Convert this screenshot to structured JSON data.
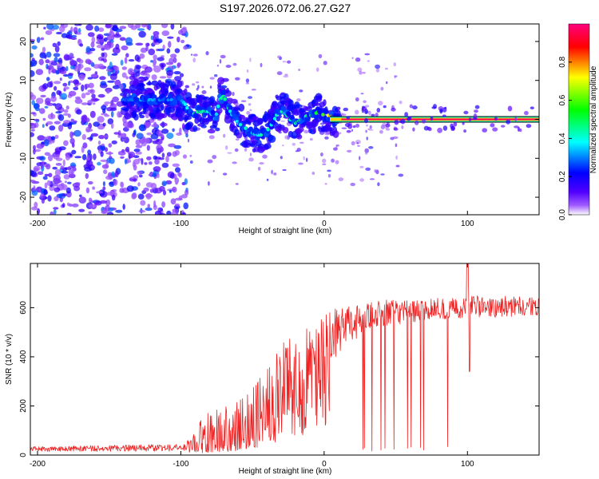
{
  "figure": {
    "title": "S197.2026.072.06.27.G27"
  },
  "chart_data": [
    {
      "id": "spectrogram",
      "type": "heatmap",
      "xlabel": "Height of straight line (km)",
      "ylabel": "Frequency (Hz)",
      "xlim": [
        -205,
        150
      ],
      "ylim": [
        -24.5,
        24.5
      ],
      "xticks": [
        -200,
        -100,
        0,
        100
      ],
      "yticks": [
        -20,
        -10,
        0,
        10,
        20
      ],
      "colorbar": {
        "label": "Normalized spectral amplitude",
        "range": [
          0,
          1
        ],
        "ticks": [
          "0.0",
          "0.2",
          "0.4",
          "0.6",
          "0.8"
        ],
        "stops": [
          "#ffffff",
          "#a05aff",
          "#5000ff",
          "#0000ff",
          "#00ffff",
          "#00ff00",
          "#ffff00",
          "#ff0000",
          "#ff0080"
        ]
      },
      "ridge": {
        "description": "dominant frequency vs height",
        "x": [
          -135,
          -128,
          -120,
          -112,
          -105,
          -100,
          -97,
          -93,
          -88,
          -84,
          -80,
          -76,
          -73,
          -70,
          -67,
          -64,
          -60,
          -56,
          -52,
          -48,
          -44,
          -40,
          -36,
          -32,
          -28,
          -24,
          -20,
          -16,
          -12,
          -8,
          -4,
          0,
          4,
          10,
          20,
          30,
          40,
          50,
          60,
          70,
          80,
          90,
          95,
          100,
          110,
          120,
          130,
          140,
          150
        ],
        "freq": [
          5,
          5,
          5,
          5,
          5,
          5,
          4,
          1,
          2,
          2,
          2,
          0,
          5,
          6,
          3,
          1,
          -1,
          -2,
          -3,
          -4,
          -4,
          -3,
          -1,
          2,
          2,
          0,
          -1,
          0,
          1,
          1,
          2,
          1,
          1,
          0,
          0,
          0,
          0,
          0,
          0,
          0,
          0,
          0,
          1,
          0,
          0,
          0,
          0,
          0,
          0
        ],
        "amp": [
          0.3,
          0.35,
          0.35,
          0.3,
          0.35,
          0.3,
          0.4,
          0.45,
          0.5,
          0.45,
          0.4,
          0.35,
          0.45,
          0.5,
          0.45,
          0.4,
          0.4,
          0.45,
          0.4,
          0.35,
          0.45,
          0.45,
          0.4,
          0.45,
          0.5,
          0.45,
          0.45,
          0.5,
          0.5,
          0.55,
          0.55,
          0.65,
          0.8,
          0.9,
          0.95,
          0.98,
          1.0,
          1.0,
          1.0,
          1.0,
          1.0,
          1.0,
          1.0,
          1.0,
          1.0,
          1.0,
          1.0,
          1.0,
          1.0
        ]
      },
      "noise_region": {
        "description": "scattered low-amplitude noise",
        "x_range": [
          -205,
          -95
        ],
        "amp_range": [
          0.05,
          0.3
        ]
      }
    },
    {
      "id": "snr",
      "type": "line",
      "xlabel": "Height of straight line (km)",
      "ylabel": "SNR (10 * v/v)",
      "xlim": [
        -205,
        150
      ],
      "ylim": [
        0,
        780
      ],
      "xticks": [
        -200,
        -100,
        0,
        100
      ],
      "yticks": [
        0,
        200,
        400,
        600
      ],
      "color": "#ee2222",
      "envelope": {
        "x": [
          -205,
          -100,
          -92,
          -85,
          -70,
          -60,
          -50,
          -40,
          -30,
          -20,
          -15,
          -10,
          -5,
          0,
          5,
          10,
          20,
          30,
          40,
          60,
          80,
          100,
          120,
          150
        ],
        "lower": [
          15,
          15,
          20,
          30,
          40,
          60,
          90,
          130,
          180,
          230,
          260,
          290,
          320,
          350,
          380,
          410,
          460,
          500,
          520,
          540,
          550,
          560,
          560,
          570
        ],
        "upper": [
          35,
          45,
          70,
          160,
          200,
          220,
          280,
          360,
          450,
          500,
          530,
          540,
          560,
          580,
          600,
          600,
          610,
          620,
          630,
          640,
          640,
          650,
          650,
          640
        ]
      },
      "features": {
        "peak": {
          "x": 100,
          "y": 780
        },
        "dip": {
          "x": 100,
          "y": 340
        },
        "dropouts_x_range": [
          10,
          88
        ]
      }
    }
  ]
}
